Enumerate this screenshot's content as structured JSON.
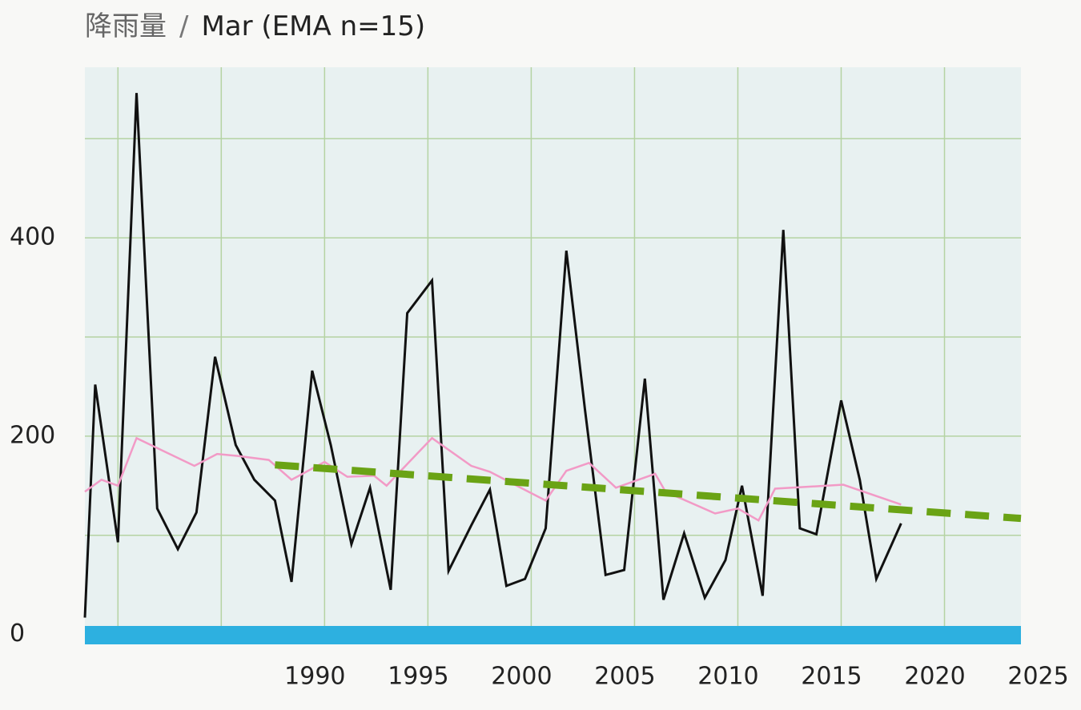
{
  "chart_data": {
    "type": "line",
    "title": "降雨量",
    "title_separator": "/",
    "subtitle": "Mar (EMA n=15)",
    "xlim": [
      1978.4,
      2023.7
    ],
    "ylim": [
      -10,
      572
    ],
    "xticks": [
      1990,
      1995,
      2000,
      2005,
      2010,
      2015,
      2020,
      2025
    ],
    "xgrid": [
      1980,
      1985,
      1990,
      1995,
      2000,
      2005,
      2010,
      2015,
      2020
    ],
    "yticks": [
      0,
      200,
      400
    ],
    "ygrid": [
      100,
      200,
      300,
      400,
      500
    ],
    "grid": true,
    "series": [
      {
        "color": "#111111",
        "width": 3,
        "dash": false,
        "x": [
          1978.4,
          1978.9,
          1980.0,
          1980.9,
          1981.9,
          1982.9,
          1983.8,
          1984.7,
          1985.7,
          1986.6,
          1987.6,
          1988.4,
          1989.4,
          1990.3,
          1991.3,
          1992.2,
          1993.2,
          1994.0,
          1995.2,
          1996.0,
          1997.1,
          1998.0,
          1998.8,
          1999.7,
          2000.7,
          2001.7,
          2002.6,
          2003.6,
          2004.5,
          2005.5,
          2006.4,
          2007.4,
          2008.4,
          2009.4,
          2010.2,
          2011.2,
          2012.2,
          2013.0,
          2013.8,
          2015.0,
          2015.9,
          2016.7,
          2017.9
        ],
        "values": [
          17,
          252,
          93,
          546,
          127,
          86,
          123,
          280,
          191,
          156,
          135,
          53,
          266,
          191,
          91,
          148,
          45,
          324,
          357,
          64,
          110,
          146,
          49,
          56,
          107,
          387,
          227,
          60,
          65,
          258,
          35,
          102,
          37,
          75,
          150,
          39,
          408,
          107,
          101,
          236,
          156,
          56,
          112
        ]
      },
      {
        "color": "#f29ac6",
        "width": 2.5,
        "dash": false,
        "x": [
          1978.4,
          1979.2,
          1980.0,
          1980.9,
          1981.9,
          1983.7,
          1984.8,
          1985.8,
          1987.3,
          1988.4,
          1990.0,
          1991.1,
          1992.4,
          1993.0,
          1995.2,
          1997.1,
          1998.0,
          2000.7,
          2001.7,
          2002.8,
          2004.1,
          2006.0,
          2006.5,
          2008.9,
          2010.0,
          2011.0,
          2011.8,
          2015.1,
          2017.9
        ],
        "values": [
          144,
          156,
          150,
          198,
          188,
          170,
          182,
          180,
          176,
          156,
          174,
          159,
          160,
          150,
          198,
          170,
          164,
          135,
          165,
          173,
          148,
          162,
          144,
          122,
          127,
          115,
          147,
          151,
          131
        ]
      },
      {
        "color": "#6aa315",
        "width": 9,
        "dash": true,
        "x": [
          1987.6,
          2023.7
        ],
        "values": [
          171,
          117
        ]
      }
    ]
  }
}
